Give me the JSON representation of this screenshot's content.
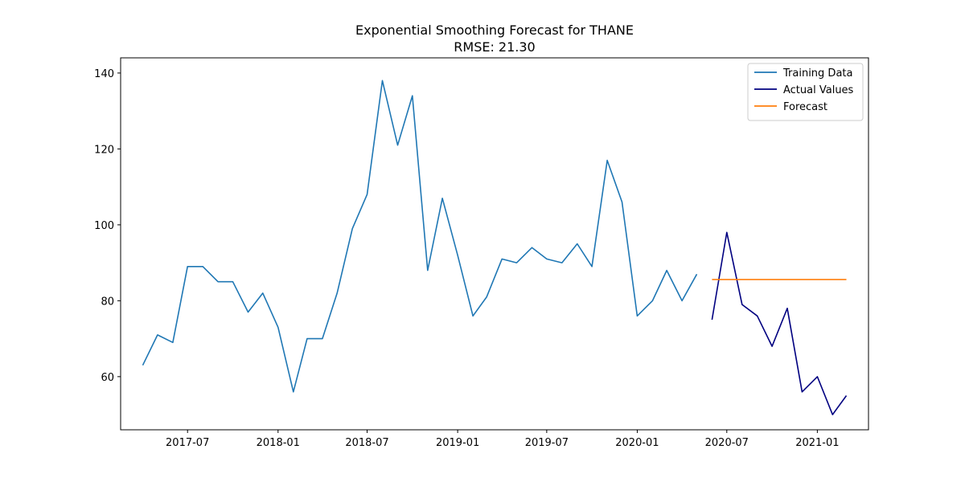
{
  "chart_data": {
    "type": "line",
    "title": "Exponential Smoothing Forecast for THANE",
    "subtitle": "RMSE: 21.30",
    "xlabel": "",
    "ylabel": "",
    "x_ticks": [
      "2017-07",
      "2018-01",
      "2018-07",
      "2019-01",
      "2019-07",
      "2020-01",
      "2020-07",
      "2021-01"
    ],
    "y_ticks": [
      60,
      80,
      100,
      120,
      140
    ],
    "xlim": [
      "2017-02-15",
      "2021-04-15"
    ],
    "ylim": [
      46,
      144
    ],
    "grid": false,
    "legend_position": "top-right",
    "series": [
      {
        "name": "Training Data",
        "color": "#1f77b4",
        "x": [
          "2017-04",
          "2017-05",
          "2017-06",
          "2017-07",
          "2017-08",
          "2017-09",
          "2017-10",
          "2017-11",
          "2017-12",
          "2018-01",
          "2018-02",
          "2018-03",
          "2018-04",
          "2018-05",
          "2018-06",
          "2018-07",
          "2018-08",
          "2018-09",
          "2018-10",
          "2018-11",
          "2018-12",
          "2019-01",
          "2019-02",
          "2019-03",
          "2019-04",
          "2019-05",
          "2019-06",
          "2019-07",
          "2019-08",
          "2019-09",
          "2019-10",
          "2019-11",
          "2019-12",
          "2020-01",
          "2020-02",
          "2020-03",
          "2020-04",
          "2020-05"
        ],
        "values": [
          63,
          71,
          69,
          89,
          89,
          85,
          85,
          77,
          82,
          73,
          56,
          70,
          70,
          82,
          99,
          108,
          138,
          121,
          134,
          88,
          107,
          92,
          76,
          81,
          91,
          90,
          94,
          91,
          90,
          95,
          89,
          117,
          106,
          76,
          80,
          88,
          80,
          87
        ]
      },
      {
        "name": "Actual Values",
        "color": "#000080",
        "x": [
          "2020-06",
          "2020-07",
          "2020-08",
          "2020-09",
          "2020-10",
          "2020-11",
          "2020-12",
          "2021-01",
          "2021-02",
          "2021-03"
        ],
        "values": [
          75,
          98,
          79,
          76,
          68,
          78,
          56,
          60,
          50,
          55
        ]
      },
      {
        "name": "Forecast",
        "color": "#ff7f0e",
        "x": [
          "2020-06",
          "2020-07",
          "2020-08",
          "2020-09",
          "2020-10",
          "2020-11",
          "2020-12",
          "2021-01",
          "2021-02",
          "2021-03"
        ],
        "values": [
          85.6,
          85.6,
          85.6,
          85.6,
          85.6,
          85.6,
          85.6,
          85.6,
          85.6,
          85.6
        ]
      }
    ]
  }
}
